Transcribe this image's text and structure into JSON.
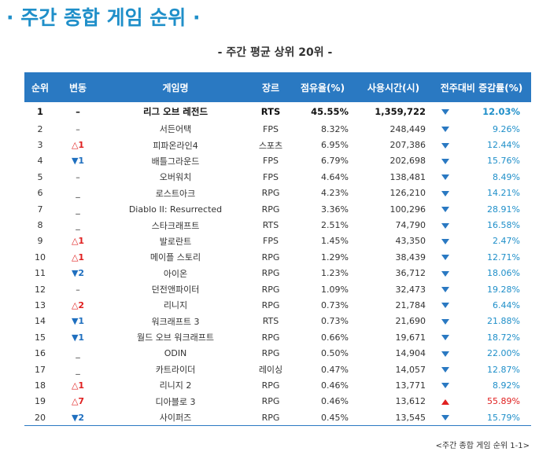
{
  "title": "· 주간 종합 게임 순위 ·",
  "subtitle": "- 주간 평균 상위 20위 -",
  "columns": [
    "순위",
    "변동",
    "게임명",
    "장르",
    "점유율(%)",
    "사용시간(시)",
    "전주대비 증감률(%)"
  ],
  "rows": [
    {
      "rank": "1",
      "change": "–",
      "change_dir": "flat",
      "game": "리그 오브 레전드",
      "genre": "RTS",
      "share": "45.55%",
      "hours": "1,359,722",
      "trend": "down",
      "rate": "12.03%"
    },
    {
      "rank": "2",
      "change": "–",
      "change_dir": "flat",
      "game": "서든어택",
      "genre": "FPS",
      "share": "8.32%",
      "hours": "248,449",
      "trend": "down",
      "rate": "9.26%"
    },
    {
      "rank": "3",
      "change": "△1",
      "change_dir": "up",
      "game": "피파온라인4",
      "genre": "스포츠",
      "share": "6.95%",
      "hours": "207,386",
      "trend": "down",
      "rate": "12.44%"
    },
    {
      "rank": "4",
      "change": "▼1",
      "change_dir": "down",
      "game": "배틀그라운드",
      "genre": "FPS",
      "share": "6.79%",
      "hours": "202,698",
      "trend": "down",
      "rate": "15.76%"
    },
    {
      "rank": "5",
      "change": "–",
      "change_dir": "flat",
      "game": "오버워치",
      "genre": "FPS",
      "share": "4.64%",
      "hours": "138,481",
      "trend": "down",
      "rate": "8.49%"
    },
    {
      "rank": "6",
      "change": "_",
      "change_dir": "flat",
      "game": "로스트아크",
      "genre": "RPG",
      "share": "4.23%",
      "hours": "126,210",
      "trend": "down",
      "rate": "14.21%"
    },
    {
      "rank": "7",
      "change": "_",
      "change_dir": "flat",
      "game": "Diablo II: Resurrected",
      "genre": "RPG",
      "share": "3.36%",
      "hours": "100,296",
      "trend": "down",
      "rate": "28.91%"
    },
    {
      "rank": "8",
      "change": "_",
      "change_dir": "flat",
      "game": "스타크래프트",
      "genre": "RTS",
      "share": "2.51%",
      "hours": "74,790",
      "trend": "down",
      "rate": "16.58%"
    },
    {
      "rank": "9",
      "change": "△1",
      "change_dir": "up",
      "game": "발로란트",
      "genre": "FPS",
      "share": "1.45%",
      "hours": "43,350",
      "trend": "down",
      "rate": "2.47%"
    },
    {
      "rank": "10",
      "change": "△1",
      "change_dir": "up",
      "game": "메이플 스토리",
      "genre": "RPG",
      "share": "1.29%",
      "hours": "38,439",
      "trend": "down",
      "rate": "12.71%"
    },
    {
      "rank": "11",
      "change": "▼2",
      "change_dir": "down",
      "game": "아이온",
      "genre": "RPG",
      "share": "1.23%",
      "hours": "36,712",
      "trend": "down",
      "rate": "18.06%"
    },
    {
      "rank": "12",
      "change": "–",
      "change_dir": "flat",
      "game": "던전앤파이터",
      "genre": "RPG",
      "share": "1.09%",
      "hours": "32,473",
      "trend": "down",
      "rate": "19.28%"
    },
    {
      "rank": "13",
      "change": "△2",
      "change_dir": "up",
      "game": "리니지",
      "genre": "RPG",
      "share": "0.73%",
      "hours": "21,784",
      "trend": "down",
      "rate": "6.44%"
    },
    {
      "rank": "14",
      "change": "▼1",
      "change_dir": "down",
      "game": "워크래프트 3",
      "genre": "RTS",
      "share": "0.73%",
      "hours": "21,690",
      "trend": "down",
      "rate": "21.88%"
    },
    {
      "rank": "15",
      "change": "▼1",
      "change_dir": "down",
      "game": "월드 오브 워크래프트",
      "genre": "RPG",
      "share": "0.66%",
      "hours": "19,671",
      "trend": "down",
      "rate": "18.72%"
    },
    {
      "rank": "16",
      "change": "_",
      "change_dir": "flat",
      "game": "ODIN",
      "genre": "RPG",
      "share": "0.50%",
      "hours": "14,904",
      "trend": "down",
      "rate": "22.00%"
    },
    {
      "rank": "17",
      "change": "_",
      "change_dir": "flat",
      "game": "카트라이더",
      "genre": "레이싱",
      "share": "0.47%",
      "hours": "14,057",
      "trend": "down",
      "rate": "12.87%"
    },
    {
      "rank": "18",
      "change": "△1",
      "change_dir": "up",
      "game": "리니지 2",
      "genre": "RPG",
      "share": "0.46%",
      "hours": "13,771",
      "trend": "down",
      "rate": "8.92%"
    },
    {
      "rank": "19",
      "change": "△7",
      "change_dir": "up",
      "game": "디아블로 3",
      "genre": "RPG",
      "share": "0.46%",
      "hours": "13,612",
      "trend": "up",
      "rate": "55.89%"
    },
    {
      "rank": "20",
      "change": "▼2",
      "change_dir": "down",
      "game": "사이퍼즈",
      "genre": "RPG",
      "share": "0.45%",
      "hours": "13,545",
      "trend": "down",
      "rate": "15.79%"
    }
  ],
  "caption": "<주간 종합 게임 순위 1-1>",
  "colors": {
    "accent": "#1f8fc9",
    "header_bg": "#2a79c2",
    "up": "#e02020",
    "down": "#1f6fbf"
  }
}
